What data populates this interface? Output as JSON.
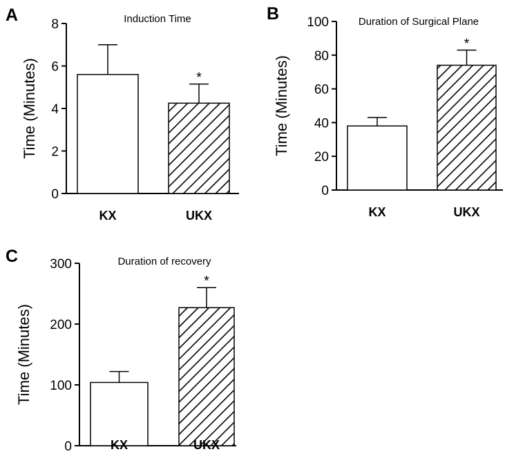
{
  "chart_data": [
    {
      "type": "bar",
      "panel": "A",
      "title": "Induction Time",
      "ylabel": "Time (Minutes)",
      "xlabel": "",
      "categories": [
        "KX",
        "UKX"
      ],
      "values": [
        5.6,
        4.25
      ],
      "errors": [
        1.4,
        0.9
      ],
      "significance": [
        "",
        "*"
      ],
      "fills": [
        "plain",
        "hatched"
      ],
      "ylim": [
        0,
        8
      ],
      "yticks": [
        0,
        2,
        4,
        6,
        8
      ]
    },
    {
      "type": "bar",
      "panel": "B",
      "title": "Duration of Surgical Plane",
      "ylabel": "Time (Minutes)",
      "xlabel": "",
      "categories": [
        "KX",
        "UKX"
      ],
      "values": [
        38,
        74
      ],
      "errors": [
        5,
        9
      ],
      "significance": [
        "",
        "*"
      ],
      "fills": [
        "plain",
        "hatched"
      ],
      "ylim": [
        0,
        100
      ],
      "yticks": [
        0,
        20,
        40,
        60,
        80,
        100
      ]
    },
    {
      "type": "bar",
      "panel": "C",
      "title": "Duration of recovery",
      "ylabel": "Time (Minutes)",
      "xlabel": "",
      "categories": [
        "KX",
        "UKX"
      ],
      "values": [
        104,
        227
      ],
      "errors": [
        18,
        33
      ],
      "significance": [
        "",
        "*"
      ],
      "fills": [
        "plain",
        "hatched"
      ],
      "ylim": [
        0,
        300
      ],
      "yticks": [
        0,
        100,
        200,
        300
      ]
    }
  ]
}
